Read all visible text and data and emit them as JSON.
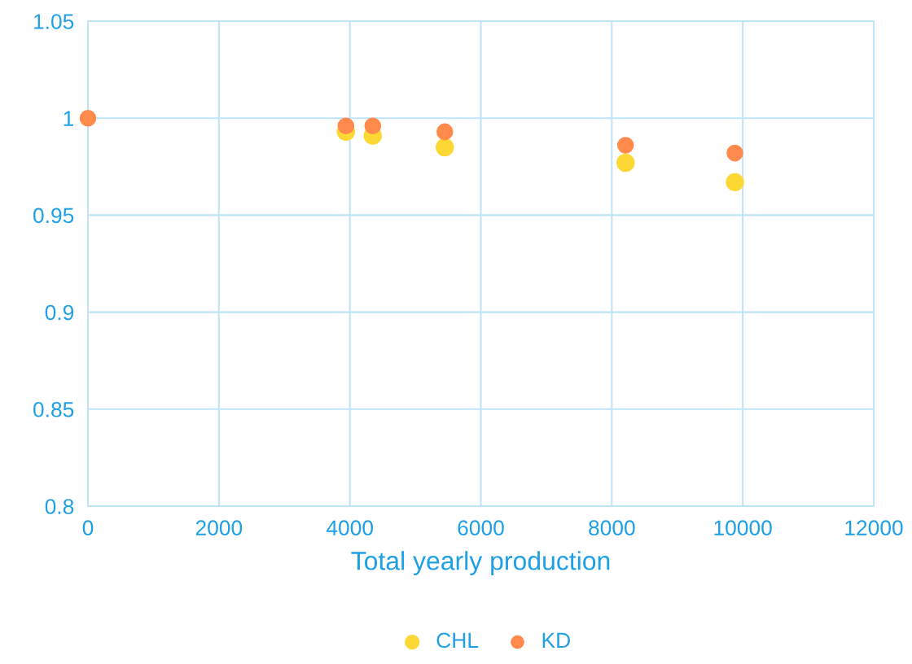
{
  "chart_data": {
    "type": "scatter",
    "xlabel": "Total yearly production",
    "x": [
      0,
      3940,
      4350,
      5450,
      8210,
      9880
    ],
    "series": [
      {
        "name": "CHL",
        "color": "#fdd835",
        "values": [
          null,
          0.993,
          0.991,
          0.985,
          0.977,
          0.967
        ]
      },
      {
        "name": "KD",
        "color": "#ff8a4c",
        "values": [
          1,
          0.996,
          0.996,
          0.993,
          0.986,
          0.982
        ]
      }
    ],
    "xlim": [
      0,
      12000
    ],
    "xticks": [
      0,
      2000,
      4000,
      6000,
      8000,
      10000,
      12000
    ],
    "ylim": [
      0.8,
      1.05
    ],
    "yticks": [
      {
        "value": 0.8,
        "label": "0.8"
      },
      {
        "value": 0.85,
        "label": "0.85"
      },
      {
        "value": 0.9,
        "label": "0.9"
      },
      {
        "value": 0.95,
        "label": "0.95"
      },
      {
        "value": 1,
        "label": "1"
      },
      {
        "value": 1.05,
        "label": "1.05"
      }
    ],
    "grid": true,
    "legend": "bottom",
    "marker": "circle"
  }
}
